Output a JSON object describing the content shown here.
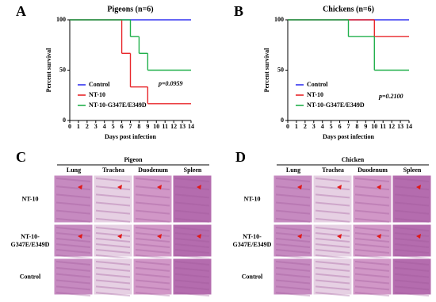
{
  "chart_data": [
    {
      "type": "line",
      "step": true,
      "panel_label": "A",
      "title": "Pigeons (n=6)",
      "x_label": "Days post infection",
      "y_label": "Percent survival",
      "xlim": [
        0,
        14
      ],
      "xticks": [
        0,
        1,
        2,
        3,
        4,
        5,
        6,
        7,
        8,
        9,
        10,
        11,
        12,
        13,
        14
      ],
      "ylim": [
        0,
        100
      ],
      "yticks": [
        0,
        50,
        100
      ],
      "annotation": "p=0.0959",
      "series": [
        {
          "name": "Control",
          "color": "#3535f0",
          "x": [
            0,
            14
          ],
          "values": [
            100,
            100
          ]
        },
        {
          "name": "NT-10",
          "color": "#e8262a",
          "x": [
            0,
            6,
            7,
            9,
            14
          ],
          "values": [
            100,
            66.7,
            33.3,
            16.7,
            16.7
          ]
        },
        {
          "name": "NT-10-G347E/E349D",
          "color": "#21b04b",
          "x": [
            0,
            7,
            8,
            9,
            14
          ],
          "values": [
            100,
            83.3,
            66.7,
            50,
            50
          ]
        }
      ]
    },
    {
      "type": "line",
      "step": true,
      "panel_label": "B",
      "title": "Chickens (n=6)",
      "x_label": "Days post infection",
      "y_label": "Percent survival",
      "xlim": [
        0,
        14
      ],
      "xticks": [
        0,
        1,
        2,
        3,
        4,
        5,
        6,
        7,
        8,
        9,
        10,
        11,
        12,
        13,
        14
      ],
      "ylim": [
        0,
        100
      ],
      "yticks": [
        0,
        50,
        100
      ],
      "annotation": "p=0.2100",
      "series": [
        {
          "name": "Control",
          "color": "#3535f0",
          "x": [
            0,
            14
          ],
          "values": [
            100,
            100
          ]
        },
        {
          "name": "NT-10",
          "color": "#e8262a",
          "x": [
            0,
            10,
            14
          ],
          "values": [
            100,
            83.3,
            83.3
          ]
        },
        {
          "name": "NT-10-G347E/E349D",
          "color": "#21b04b",
          "x": [
            0,
            7,
            10,
            14
          ],
          "values": [
            100,
            83.3,
            50,
            50
          ]
        }
      ]
    }
  ],
  "histology_panels": [
    {
      "panel_label": "C",
      "species": "Pigeon",
      "columns": [
        "Lung",
        "Trachea",
        "Duodenum",
        "Spleen"
      ],
      "rows": [
        [
          "NT-10"
        ],
        [
          "NT-10-",
          "G347E/E349D"
        ],
        [
          "Control"
        ]
      ]
    },
    {
      "panel_label": "D",
      "species": "Chicken",
      "columns": [
        "Lung",
        "Trachea",
        "Duodenum",
        "Spleen"
      ],
      "rows": [
        [
          "NT-10"
        ],
        [
          "NT-10-",
          "G347E/E349D"
        ],
        [
          "Control"
        ]
      ]
    }
  ]
}
